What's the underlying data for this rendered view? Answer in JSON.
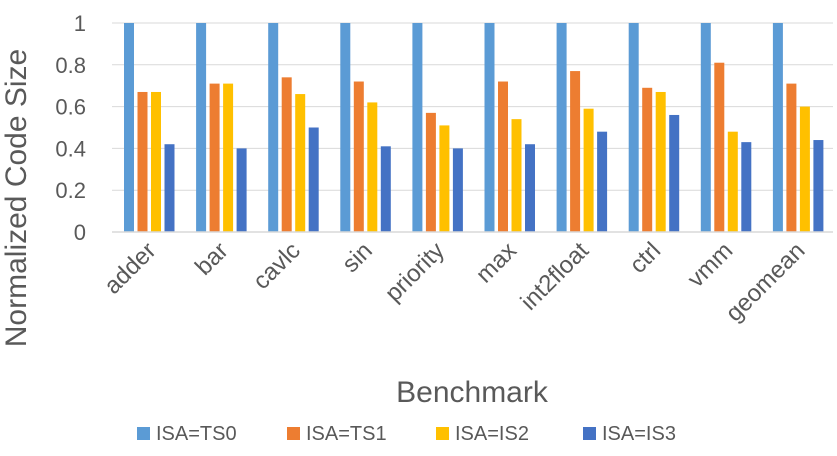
{
  "chart_data": {
    "type": "bar",
    "title": "",
    "xlabel": "Benchmark",
    "ylabel": "Normalized Code Size",
    "ylim": [
      0,
      1
    ],
    "yticks": [
      0,
      0.2,
      0.4,
      0.6,
      0.8,
      1
    ],
    "ytick_labels": [
      "0",
      "0.2",
      "0.4",
      "0.6",
      "0.8",
      "1"
    ],
    "grid": true,
    "legend_position": "bottom",
    "categories": [
      "adder",
      "bar",
      "cavlc",
      "sin",
      "priority",
      "max",
      "int2float",
      "ctrl",
      "vmm",
      "geomean"
    ],
    "series": [
      {
        "name": "ISA=TS0",
        "color": "#5B9BD5",
        "values": [
          1,
          1,
          1,
          1,
          1,
          1,
          1,
          1,
          1,
          1
        ]
      },
      {
        "name": "ISA=TS1",
        "color": "#ED7D31",
        "values": [
          0.67,
          0.71,
          0.74,
          0.72,
          0.57,
          0.72,
          0.77,
          0.69,
          0.81,
          0.71
        ]
      },
      {
        "name": "ISA=IS2",
        "color": "#FFC000",
        "values": [
          0.67,
          0.71,
          0.66,
          0.62,
          0.51,
          0.54,
          0.59,
          0.67,
          0.48,
          0.6
        ]
      },
      {
        "name": "ISA=IS3",
        "color": "#4472C4",
        "values": [
          0.42,
          0.4,
          0.5,
          0.41,
          0.4,
          0.42,
          0.48,
          0.56,
          0.43,
          0.44
        ]
      }
    ]
  }
}
